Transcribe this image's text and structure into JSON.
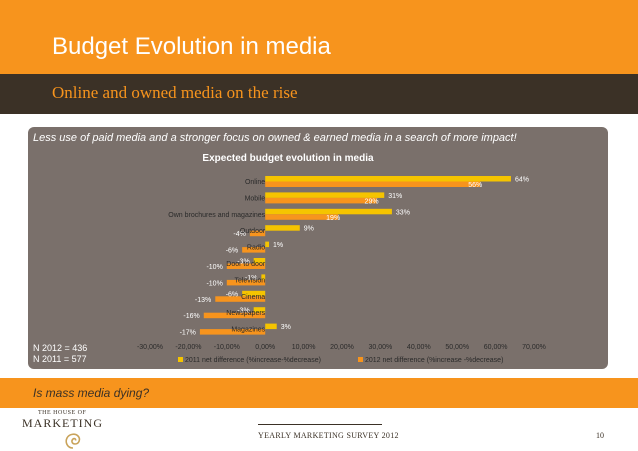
{
  "slide": {
    "title": "Budget Evolution in media",
    "subtitle": "Online and owned media on the rise",
    "lead": "Less use of paid media and a stronger focus on owned & earned media in a search of more impact!",
    "n_2012": "N 2012 = 436",
    "n_2011": "N 2011 = 577",
    "question": "Is mass media dying?",
    "survey_label": "YEARLY MARKETING SURVEY 2012",
    "page_number": "10",
    "logo_top": "THE HOUSE OF",
    "logo_main": "MARKETING"
  },
  "colors": {
    "orange": "#f7941d",
    "dark_band": "#3b3126",
    "panel": "#7a706b",
    "series_2011": "#f5c400",
    "series_2012": "#f7941d"
  },
  "chart_data": {
    "type": "bar",
    "orientation": "horizontal",
    "title": "Expected budget evolution in media",
    "categories": [
      "Online",
      "Mobile",
      "Own brochures and magazines",
      "Outdoor",
      "Radio",
      "Door to door",
      "Television",
      "Cinema",
      "Newspapers",
      "Magazines"
    ],
    "series": [
      {
        "name": "2011 net difference (%increase-%decrease)",
        "values": [
          64,
          31,
          33,
          9,
          1,
          -3,
          -1,
          -6,
          -3,
          3
        ],
        "labels": [
          "64%",
          "31%",
          "33%",
          "9%",
          "1%",
          "-3%",
          "-1%",
          "-6%",
          "-3%",
          "3%"
        ]
      },
      {
        "name": "2012 net difference (%increase -%decrease)",
        "values": [
          56,
          29,
          19,
          -4,
          -6,
          -10,
          -10,
          -13,
          -16,
          -17
        ],
        "labels": [
          "56%",
          "29%",
          "19%",
          "-4%",
          "-6%",
          "-10%",
          "-10%",
          "-13%",
          "-16%",
          "-17%"
        ]
      }
    ],
    "xlim": [
      -30,
      70
    ],
    "x_ticks": [
      -30,
      -20,
      -10,
      0,
      10,
      20,
      30,
      40,
      50,
      60,
      70
    ],
    "x_tick_labels": [
      "-30,00%",
      "-20,00%",
      "-10,00%",
      "0,00%",
      "10,00%",
      "20,00%",
      "30,00%",
      "40,00%",
      "50,00%",
      "60,00%",
      "70,00%"
    ],
    "grid": false,
    "legend": "bottom"
  }
}
